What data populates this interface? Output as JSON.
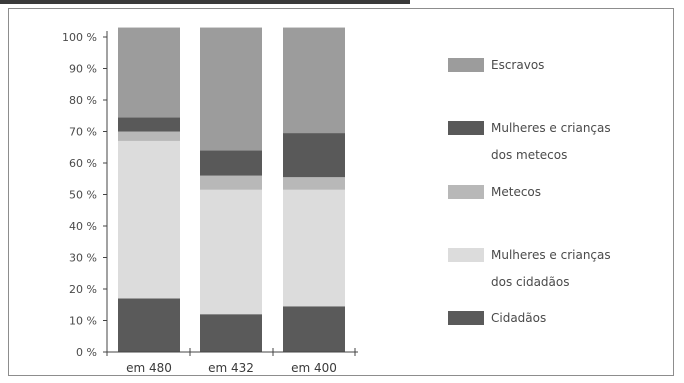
{
  "chart_data": {
    "type": "bar",
    "stacked": true,
    "categories": [
      "em 480",
      "em 432",
      "em 400"
    ],
    "ylim": [
      0,
      100
    ],
    "ytick_labels": [
      "0 %",
      "10 %",
      "20 %",
      "30 %",
      "40 %",
      "50 %",
      "60 %",
      "70 %",
      "80 %",
      "90 %",
      "100 %"
    ],
    "series": [
      {
        "name": "Cidadãos",
        "values": [
          17,
          12,
          14.5
        ],
        "color": "#5a5a5a"
      },
      {
        "name": "Mulheres e crianças dos cidadãos",
        "values": [
          50,
          39.5,
          37
        ],
        "color": "#dcdcdc"
      },
      {
        "name": "Metecos",
        "values": [
          3,
          4.5,
          4
        ],
        "color": "#b8b8b8"
      },
      {
        "name": "Mulheres e crianças dos metecos",
        "values": [
          4.5,
          8,
          14
        ],
        "color": "#595959"
      },
      {
        "name": "Escravos",
        "values": [
          28.5,
          39,
          33.5
        ],
        "color": "#9c9c9c"
      }
    ],
    "legend": [
      {
        "lines": [
          "Escravos"
        ],
        "color": "#9c9c9c"
      },
      {
        "lines": [
          "Mulheres  e crianças",
          "dos metecos"
        ],
        "color": "#595959"
      },
      {
        "lines": [
          "Metecos"
        ],
        "color": "#b8b8b8"
      },
      {
        "lines": [
          "Mulheres e crianças",
          "dos cidadãos"
        ],
        "color": "#dcdcdc"
      },
      {
        "lines": [
          "Cidadãos"
        ],
        "color": "#5a5a5a"
      }
    ],
    "legend_position": "right",
    "grid": false
  }
}
